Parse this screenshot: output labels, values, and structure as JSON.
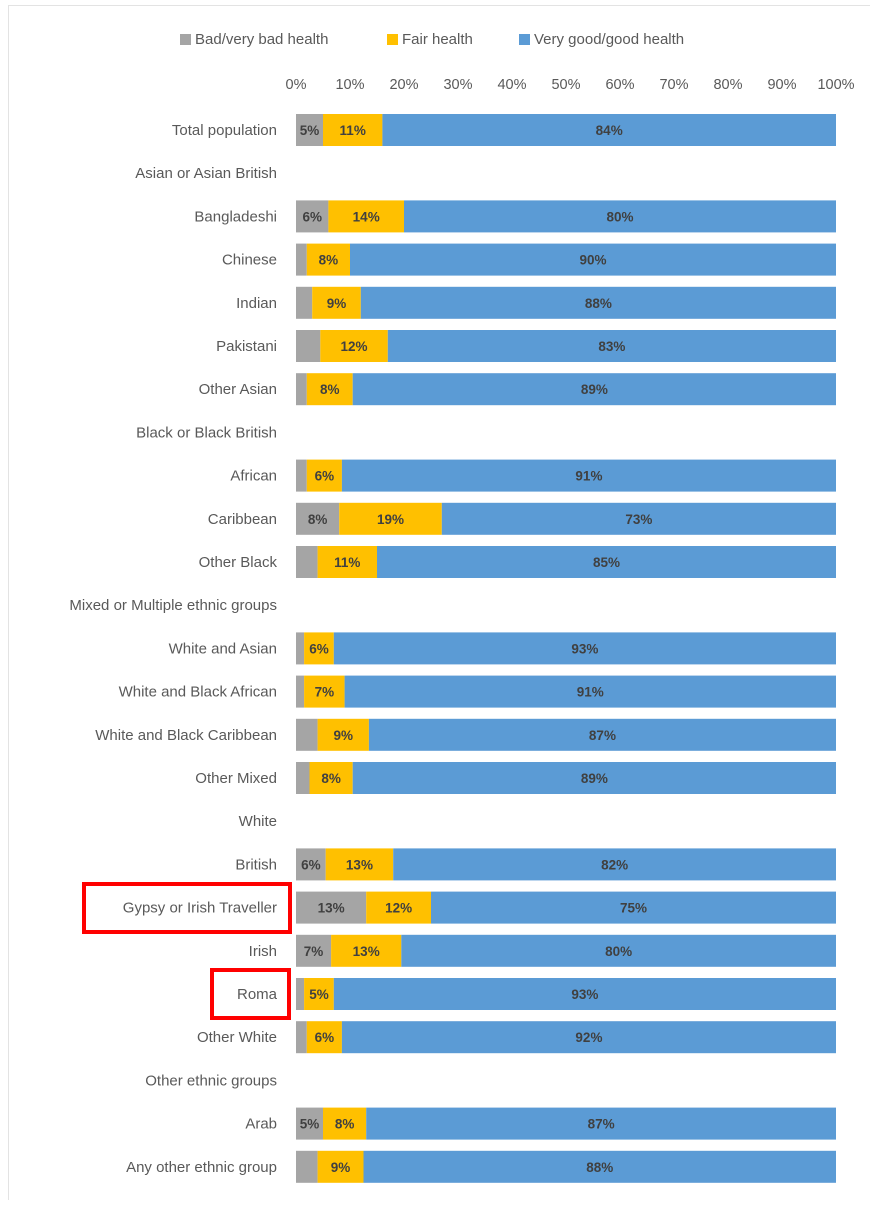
{
  "chart_data": {
    "type": "bar",
    "orientation": "horizontal",
    "stacked": true,
    "percent_scale": true,
    "xlim": [
      0,
      100
    ],
    "x_ticks": [
      "0%",
      "10%",
      "20%",
      "30%",
      "40%",
      "50%",
      "60%",
      "70%",
      "80%",
      "90%",
      "100%"
    ],
    "grid": false,
    "legend_position": "top",
    "categories": [
      "Total population",
      "Asian or Asian British",
      "Bangladeshi",
      "Chinese",
      "Indian",
      "Pakistani",
      "Other Asian",
      "Black or Black British",
      "African",
      "Caribbean",
      "Other Black",
      "Mixed or Multiple ethnic groups",
      "White and Asian",
      "White and Black African",
      "White and Black Caribbean",
      "Other Mixed",
      "White",
      "British",
      "Gypsy or Irish Traveller",
      "Irish",
      "Roma",
      "Other White",
      "Other ethnic groups",
      "Arab",
      "Any other ethnic group"
    ],
    "group_headers": [
      "Asian or Asian British",
      "Black or Black British",
      "Mixed or Multiple ethnic groups",
      "White",
      "Other ethnic groups"
    ],
    "highlighted_categories": [
      "Gypsy or Irish Traveller",
      "Roma"
    ],
    "series": [
      {
        "name": "Bad/very bad health",
        "color": "#a5a5a5",
        "values": [
          5,
          null,
          6,
          2,
          3,
          4.5,
          2,
          null,
          2,
          8,
          4,
          null,
          1.5,
          1.5,
          4,
          2.5,
          null,
          5.5,
          13,
          6.5,
          1.5,
          2,
          null,
          5,
          4
        ],
        "labels": [
          "5%",
          "",
          "6%",
          "",
          "",
          "",
          "",
          "",
          "",
          "8%",
          "",
          "",
          "",
          "",
          "",
          "",
          "",
          "6%",
          "13%",
          "7%",
          "",
          "",
          "",
          "5%",
          ""
        ]
      },
      {
        "name": "Fair health",
        "color": "#ffc000",
        "values": [
          11,
          null,
          14,
          8,
          9,
          12.5,
          8.5,
          null,
          6.5,
          19,
          11,
          null,
          5.5,
          7.5,
          9.5,
          8,
          null,
          12.5,
          12,
          13,
          5.5,
          6.5,
          null,
          8,
          8.5
        ],
        "labels": [
          "11%",
          "",
          "14%",
          "8%",
          "9%",
          "12%",
          "8%",
          "",
          "6%",
          "19%",
          "11%",
          "",
          "6%",
          "7%",
          "9%",
          "8%",
          "",
          "13%",
          "12%",
          "13%",
          "5%",
          "6%",
          "",
          "8%",
          "9%"
        ]
      },
      {
        "name": "Very good/good health",
        "color": "#5b9bd5",
        "values": [
          84,
          null,
          80,
          90,
          88,
          83,
          89.5,
          null,
          91.5,
          73,
          85,
          null,
          93,
          91,
          86.5,
          89.5,
          null,
          82,
          75,
          80.5,
          93,
          91.5,
          null,
          87,
          87.5
        ],
        "labels": [
          "84%",
          "",
          "80%",
          "90%",
          "88%",
          "83%",
          "89%",
          "",
          "91%",
          "73%",
          "85%",
          "",
          "93%",
          "91%",
          "87%",
          "89%",
          "",
          "82%",
          "75%",
          "80%",
          "93%",
          "92%",
          "",
          "87%",
          "88%"
        ]
      }
    ]
  }
}
